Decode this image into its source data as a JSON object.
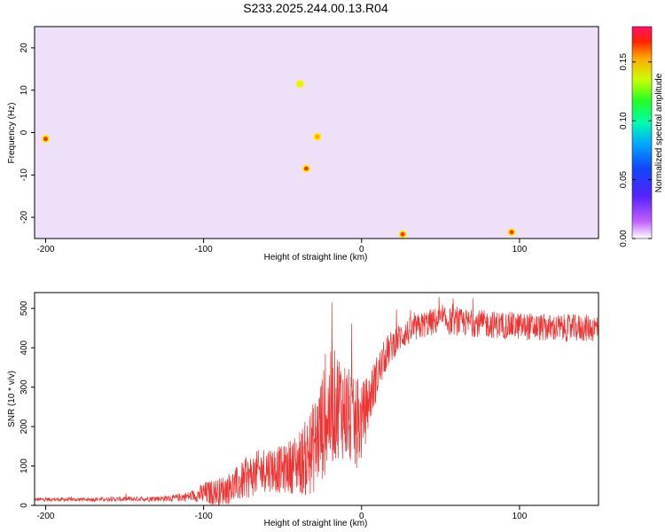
{
  "title": "S233.2025.244.00.13.R04",
  "chart_data": [
    {
      "type": "heatmap",
      "title": "",
      "xlabel": "Height of straight line (km)",
      "ylabel": "Frequency (Hz)",
      "xlim": [
        -207,
        150
      ],
      "ylim": [
        -25,
        25
      ],
      "x_ticks": [
        -200,
        -100,
        0,
        100
      ],
      "y_ticks": [
        -20,
        -10,
        0,
        10,
        20
      ],
      "description_scale": "rainbow colormap from white/violet (0.00) through blue, cyan, green, yellow to red/magenta (~0.18)",
      "colorbar": {
        "label": "Normalized spectral amplitude",
        "range": [
          0.0,
          0.18
        ],
        "ticks": [
          "0.00",
          "0.05",
          "0.10",
          "0.15"
        ],
        "tick_values": [
          0.0,
          0.05,
          0.1,
          0.15
        ]
      },
      "hotspots": [
        {
          "x": -200,
          "y": -1.5,
          "value": 0.17
        },
        {
          "x": -35,
          "y": -8.5,
          "value": 0.17
        },
        {
          "x": -28,
          "y": -1,
          "value": 0.15
        },
        {
          "x": 26,
          "y": -24,
          "value": 0.17
        },
        {
          "x": 95,
          "y": -23.5,
          "value": 0.17
        },
        {
          "x": -39,
          "y": 11.5,
          "value": 0.12
        }
      ]
    },
    {
      "type": "line",
      "title": "",
      "xlabel": "Height of straight line (km)",
      "ylabel": "SNR (10 * v/v)",
      "xlim": [
        -207,
        150
      ],
      "ylim": [
        0,
        540
      ],
      "x_ticks": [
        -200,
        -100,
        0,
        100
      ],
      "y_ticks": [
        0,
        100,
        200,
        300,
        400,
        500
      ],
      "color": "#ee3333",
      "series": [
        {
          "name": "SNR",
          "x": [
            -207,
            -180,
            -150,
            -120,
            -105,
            -100,
            -90,
            -80,
            -70,
            -60,
            -50,
            -40,
            -35,
            -30,
            -25,
            -20,
            -15,
            -10,
            -5,
            0,
            5,
            10,
            15,
            20,
            25,
            30,
            40,
            50,
            60,
            80,
            100,
            120,
            140,
            150
          ],
          "values": [
            15,
            15,
            16,
            18,
            25,
            30,
            35,
            50,
            75,
            95,
            90,
            110,
            120,
            150,
            200,
            240,
            260,
            240,
            200,
            210,
            270,
            330,
            380,
            410,
            430,
            440,
            460,
            470,
            465,
            460,
            455,
            450,
            450,
            450
          ],
          "noise": [
            5,
            5,
            6,
            8,
            15,
            30,
            35,
            45,
            55,
            60,
            60,
            80,
            100,
            120,
            140,
            150,
            140,
            130,
            120,
            100,
            70,
            55,
            45,
            40,
            35,
            35,
            35,
            35,
            35,
            35,
            35,
            35,
            35,
            35
          ]
        }
      ]
    }
  ]
}
